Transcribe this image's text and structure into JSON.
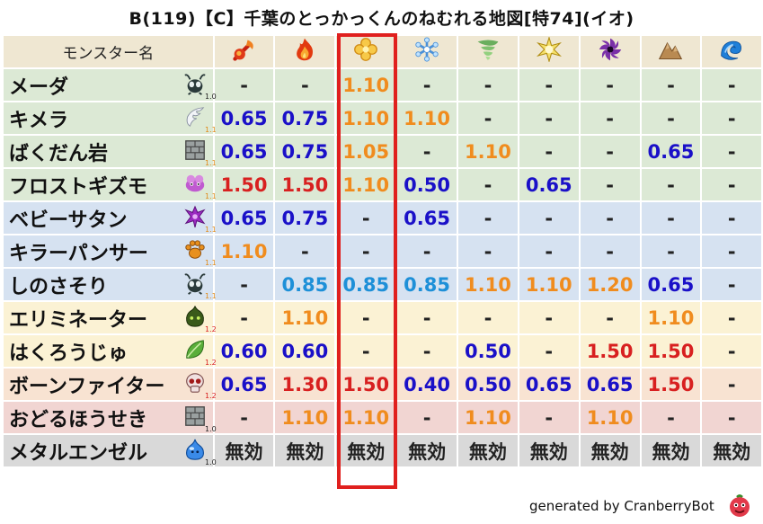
{
  "title": "B(119)【C】千葉のとっかっくんのねむれる地図[特74](イオ)",
  "header": {
    "name_label": "モンスター名",
    "attributes": [
      "fire-attack-icon",
      "flame-icon",
      "light-icon",
      "ice-icon",
      "wind-icon",
      "explosion-icon",
      "darkness-icon",
      "earth-icon",
      "water-icon"
    ]
  },
  "highlight_column": 3,
  "rows": [
    {
      "name": "メーダ",
      "icon": "bug-icon",
      "level": "1.0",
      "bg": "green",
      "values": [
        "-",
        "-",
        "1.10",
        "-",
        "-",
        "-",
        "-",
        "-",
        "-"
      ]
    },
    {
      "name": "キメラ",
      "icon": "wing-icon",
      "level": "1.1",
      "bg": "green",
      "values": [
        "0.65",
        "0.75",
        "1.10",
        "1.10",
        "-",
        "-",
        "-",
        "-",
        "-"
      ]
    },
    {
      "name": "ばくだん岩",
      "icon": "brick-icon",
      "level": "1.1",
      "bg": "green",
      "values": [
        "0.65",
        "0.75",
        "1.05",
        "-",
        "1.10",
        "-",
        "-",
        "0.65",
        "-"
      ]
    },
    {
      "name": "フロストギズモ",
      "icon": "gizmo-icon",
      "level": "1.1",
      "bg": "green",
      "values": [
        "1.50",
        "1.50",
        "1.10",
        "0.50",
        "-",
        "0.65",
        "-",
        "-",
        "-"
      ]
    },
    {
      "name": "ベビーサタン",
      "icon": "devil-icon",
      "level": "1.1",
      "bg": "blue",
      "values": [
        "0.65",
        "0.75",
        "-",
        "0.65",
        "-",
        "-",
        "-",
        "-",
        "-"
      ]
    },
    {
      "name": "キラーパンサー",
      "icon": "paw-icon",
      "level": "1.1",
      "bg": "blue",
      "values": [
        "1.10",
        "-",
        "-",
        "-",
        "-",
        "-",
        "-",
        "-",
        "-"
      ]
    },
    {
      "name": "しのさそり",
      "icon": "bug-icon",
      "level": "1.1",
      "bg": "blue",
      "values": [
        "-",
        "0.85",
        "0.85",
        "0.85",
        "1.10",
        "1.10",
        "1.20",
        "0.65",
        "-"
      ]
    },
    {
      "name": "エリミネーター",
      "icon": "slime-icon",
      "level": "1.2",
      "bg": "yellow",
      "values": [
        "-",
        "1.10",
        "-",
        "-",
        "-",
        "-",
        "-",
        "1.10",
        "-"
      ]
    },
    {
      "name": "はくろうじゅ",
      "icon": "leaf-icon",
      "level": "1.2",
      "bg": "yellow",
      "values": [
        "0.60",
        "0.60",
        "-",
        "-",
        "0.50",
        "-",
        "1.50",
        "1.50",
        "-"
      ]
    },
    {
      "name": "ボーンファイター",
      "icon": "skull-icon",
      "level": "1.2",
      "bg": "peach",
      "values": [
        "0.65",
        "1.30",
        "1.50",
        "0.40",
        "0.50",
        "0.65",
        "0.65",
        "1.50",
        "-"
      ]
    },
    {
      "name": "おどるほうせき",
      "icon": "brick-icon",
      "level": "1.0",
      "bg": "pink",
      "values": [
        "-",
        "1.10",
        "1.10",
        "-",
        "1.10",
        "-",
        "1.10",
        "-",
        "-"
      ]
    },
    {
      "name": "メタルエンゼル",
      "icon": "metal-slime-icon",
      "level": "1.0",
      "bg": "gray",
      "values": [
        "無効",
        "無効",
        "無効",
        "無効",
        "無効",
        "無効",
        "無効",
        "無効",
        "無効"
      ]
    }
  ],
  "colors": {
    "low": "#1a10c8",
    "mid_low": "#1e90d8",
    "mid_high": "#f08c1e",
    "high": "#d82020",
    "highlight": "#e0201e"
  },
  "footer": "generated by CranberryBot",
  "footer_icon": "cranberry-bot-icon"
}
